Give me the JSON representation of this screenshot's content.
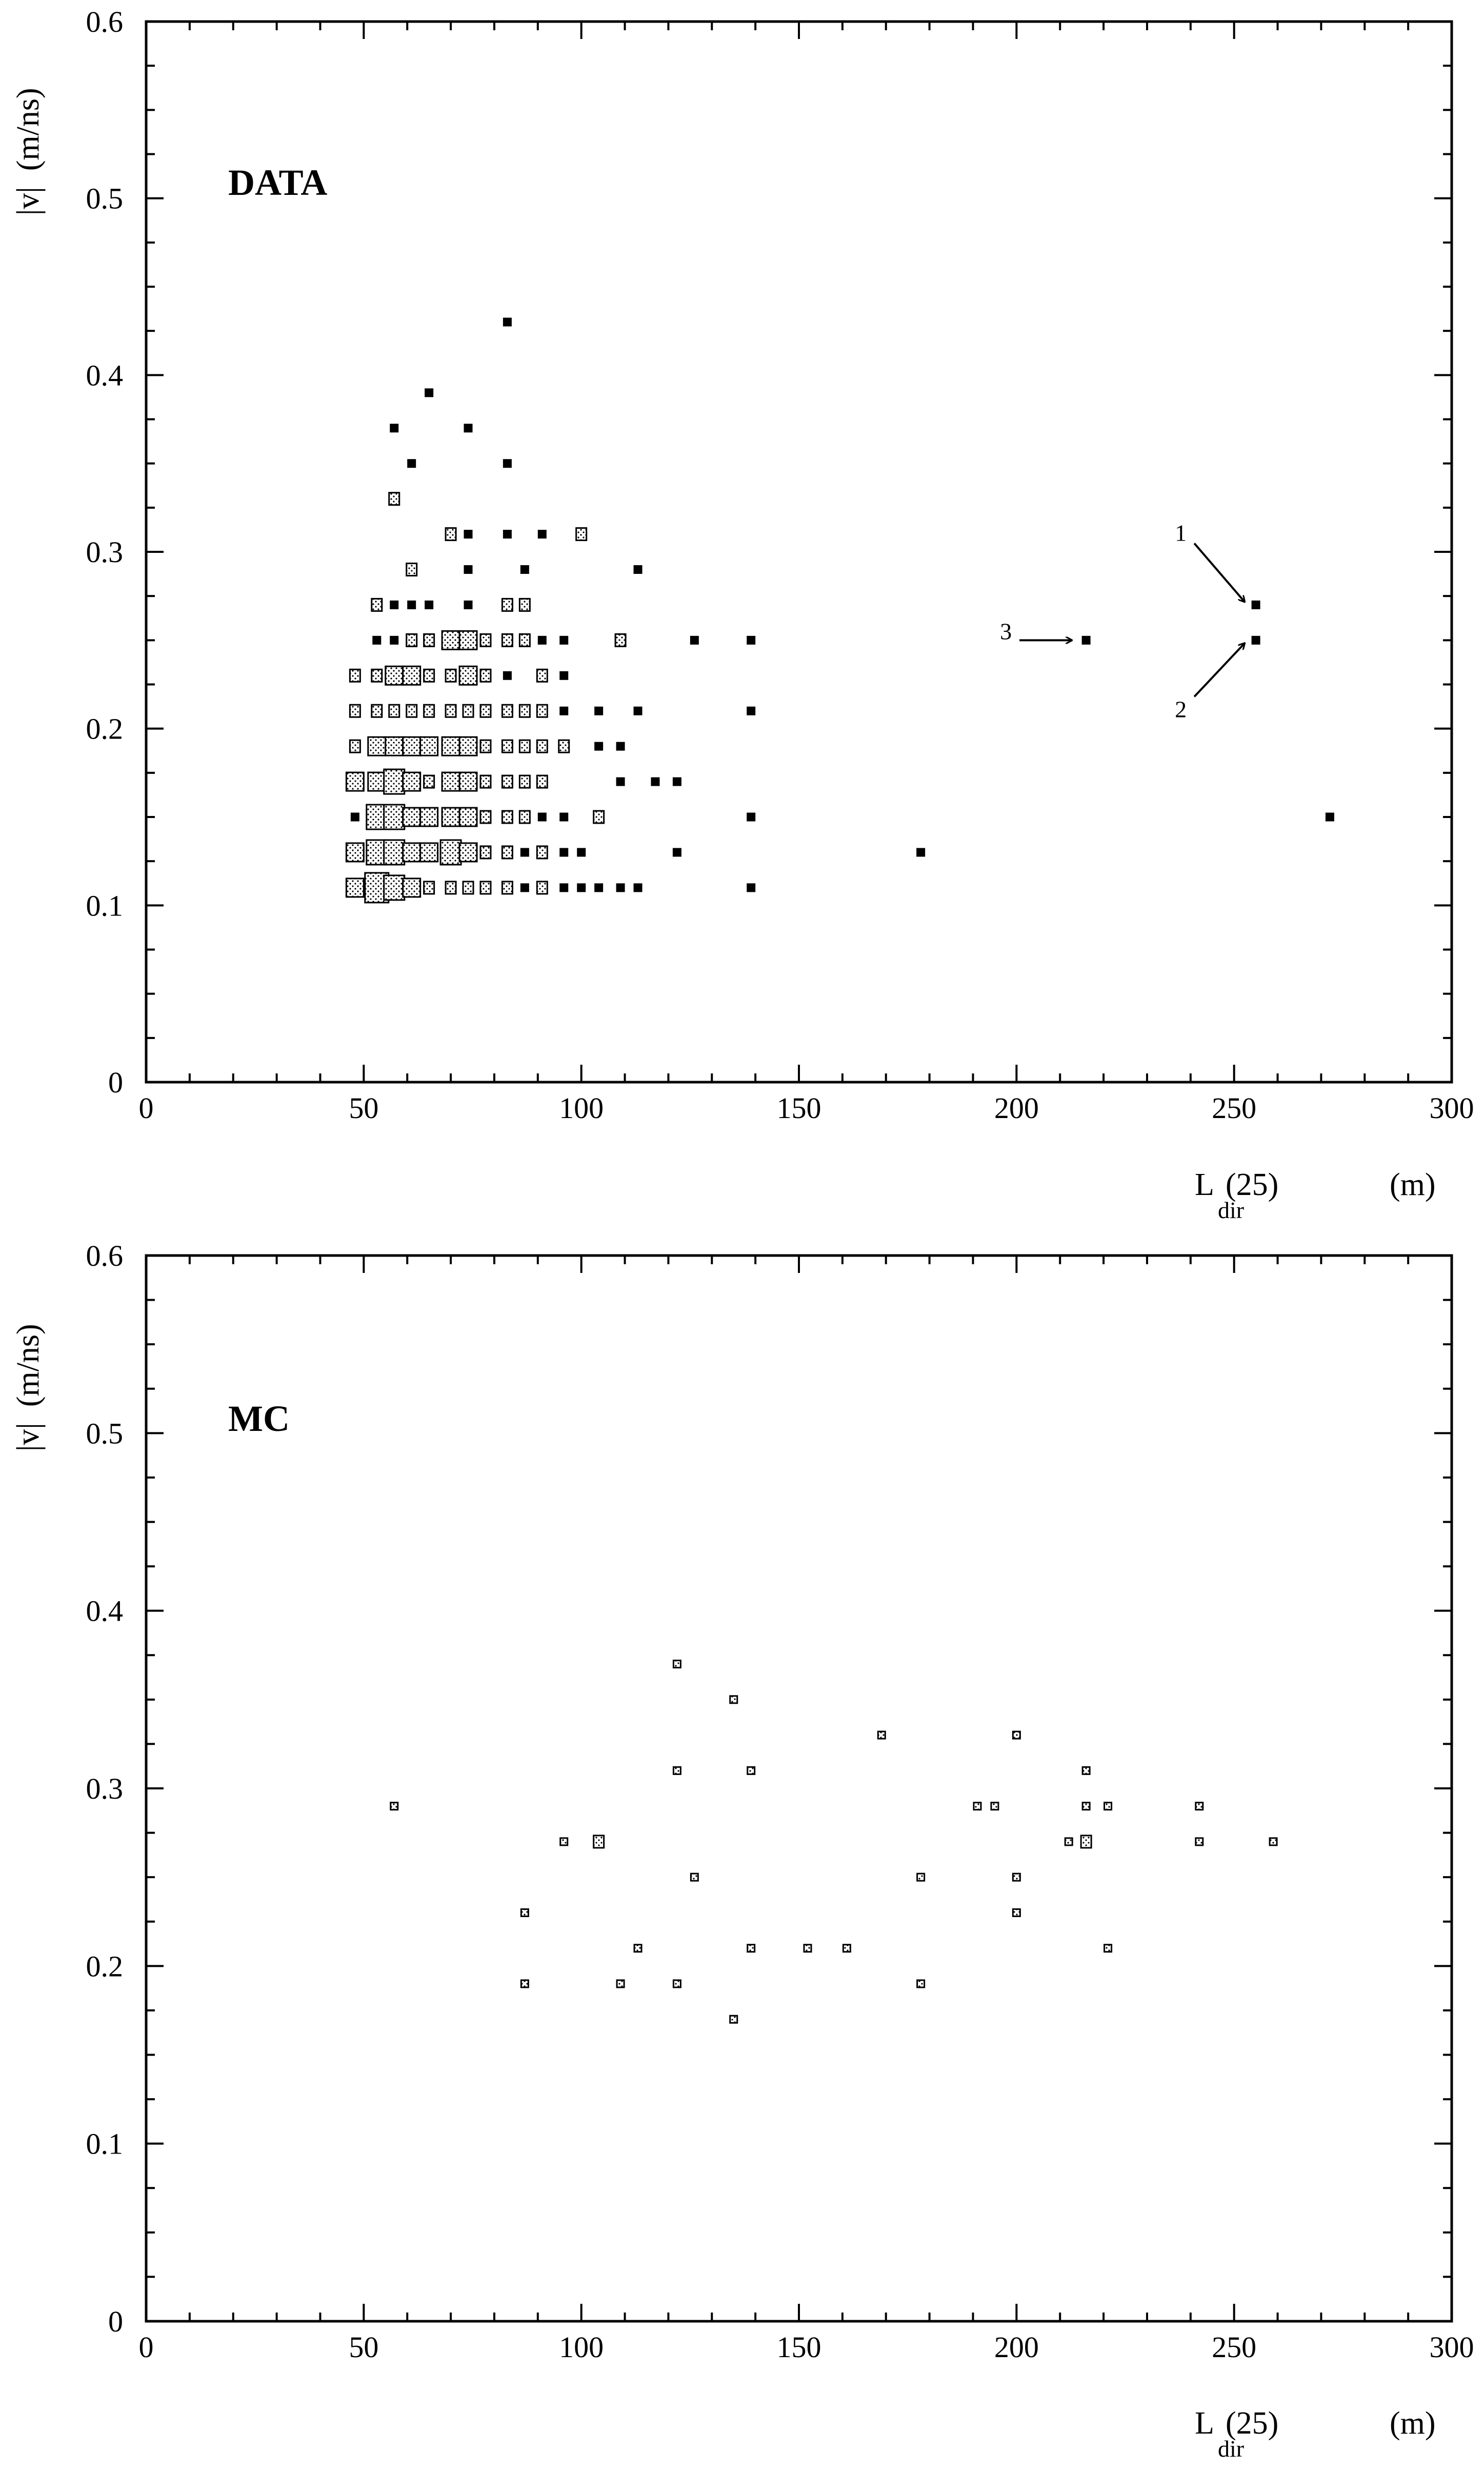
{
  "chart_data": [
    {
      "type": "scatter",
      "panel_label": "DATA",
      "x_label_main": "L",
      "x_label_sub": "dir",
      "x_label_arg": "(25)",
      "x_label_unit": "(m)",
      "y_label": "|v|  (m/ns)",
      "xlim": [
        0,
        300
      ],
      "ylim": [
        0,
        0.6
      ],
      "x_ticks": [
        0,
        50,
        100,
        150,
        200,
        250,
        300
      ],
      "y_ticks": [
        0,
        0.1,
        0.2,
        0.3,
        0.4,
        0.5,
        0.6
      ],
      "x_tick_labels": [
        "0",
        "50",
        "100",
        "150",
        "200",
        "250",
        "300"
      ],
      "y_tick_labels": [
        "0",
        "0.1",
        "0.2",
        "0.3",
        "0.4",
        "0.5",
        "0.6"
      ],
      "grid": false,
      "marker": "box (size ∝ entries)",
      "points": [
        {
          "x": 83,
          "y": 0.43,
          "w": 1
        },
        {
          "x": 65,
          "y": 0.39,
          "w": 1
        },
        {
          "x": 57,
          "y": 0.37,
          "w": 1
        },
        {
          "x": 74,
          "y": 0.37,
          "w": 1
        },
        {
          "x": 61,
          "y": 0.35,
          "w": 1
        },
        {
          "x": 83,
          "y": 0.35,
          "w": 1
        },
        {
          "x": 57,
          "y": 0.33,
          "w": 2
        },
        {
          "x": 70,
          "y": 0.31,
          "w": 2
        },
        {
          "x": 74,
          "y": 0.31,
          "w": 1
        },
        {
          "x": 83,
          "y": 0.31,
          "w": 1
        },
        {
          "x": 91,
          "y": 0.31,
          "w": 1
        },
        {
          "x": 100,
          "y": 0.31,
          "w": 2
        },
        {
          "x": 61,
          "y": 0.29,
          "w": 2
        },
        {
          "x": 74,
          "y": 0.29,
          "w": 1
        },
        {
          "x": 87,
          "y": 0.29,
          "w": 1
        },
        {
          "x": 113,
          "y": 0.29,
          "w": 1
        },
        {
          "x": 53,
          "y": 0.27,
          "w": 2
        },
        {
          "x": 57,
          "y": 0.27,
          "w": 1
        },
        {
          "x": 61,
          "y": 0.27,
          "w": 1
        },
        {
          "x": 65,
          "y": 0.27,
          "w": 1
        },
        {
          "x": 74,
          "y": 0.27,
          "w": 1
        },
        {
          "x": 83,
          "y": 0.27,
          "w": 2
        },
        {
          "x": 87,
          "y": 0.27,
          "w": 2
        },
        {
          "x": 53,
          "y": 0.25,
          "w": 1
        },
        {
          "x": 57,
          "y": 0.25,
          "w": 1
        },
        {
          "x": 61,
          "y": 0.25,
          "w": 2
        },
        {
          "x": 65,
          "y": 0.25,
          "w": 2
        },
        {
          "x": 70,
          "y": 0.25,
          "w": 3
        },
        {
          "x": 74,
          "y": 0.25,
          "w": 3
        },
        {
          "x": 78,
          "y": 0.25,
          "w": 2
        },
        {
          "x": 83,
          "y": 0.25,
          "w": 2
        },
        {
          "x": 87,
          "y": 0.25,
          "w": 2
        },
        {
          "x": 91,
          "y": 0.25,
          "w": 1
        },
        {
          "x": 96,
          "y": 0.25,
          "w": 1
        },
        {
          "x": 109,
          "y": 0.25,
          "w": 2
        },
        {
          "x": 126,
          "y": 0.25,
          "w": 1
        },
        {
          "x": 139,
          "y": 0.25,
          "w": 1
        },
        {
          "x": 48,
          "y": 0.23,
          "w": 2
        },
        {
          "x": 53,
          "y": 0.23,
          "w": 2
        },
        {
          "x": 57,
          "y": 0.23,
          "w": 3
        },
        {
          "x": 61,
          "y": 0.23,
          "w": 3
        },
        {
          "x": 65,
          "y": 0.23,
          "w": 2
        },
        {
          "x": 70,
          "y": 0.23,
          "w": 2
        },
        {
          "x": 74,
          "y": 0.23,
          "w": 3
        },
        {
          "x": 78,
          "y": 0.23,
          "w": 2
        },
        {
          "x": 83,
          "y": 0.23,
          "w": 1
        },
        {
          "x": 91,
          "y": 0.23,
          "w": 2
        },
        {
          "x": 96,
          "y": 0.23,
          "w": 1
        },
        {
          "x": 48,
          "y": 0.21,
          "w": 2
        },
        {
          "x": 53,
          "y": 0.21,
          "w": 2
        },
        {
          "x": 57,
          "y": 0.21,
          "w": 2
        },
        {
          "x": 61,
          "y": 0.21,
          "w": 2
        },
        {
          "x": 65,
          "y": 0.21,
          "w": 2
        },
        {
          "x": 70,
          "y": 0.21,
          "w": 2
        },
        {
          "x": 74,
          "y": 0.21,
          "w": 2
        },
        {
          "x": 78,
          "y": 0.21,
          "w": 2
        },
        {
          "x": 83,
          "y": 0.21,
          "w": 2
        },
        {
          "x": 87,
          "y": 0.21,
          "w": 2
        },
        {
          "x": 91,
          "y": 0.21,
          "w": 2
        },
        {
          "x": 96,
          "y": 0.21,
          "w": 1
        },
        {
          "x": 104,
          "y": 0.21,
          "w": 1
        },
        {
          "x": 113,
          "y": 0.21,
          "w": 1
        },
        {
          "x": 139,
          "y": 0.21,
          "w": 1
        },
        {
          "x": 48,
          "y": 0.19,
          "w": 2
        },
        {
          "x": 53,
          "y": 0.19,
          "w": 3
        },
        {
          "x": 57,
          "y": 0.19,
          "w": 3
        },
        {
          "x": 61,
          "y": 0.19,
          "w": 3
        },
        {
          "x": 65,
          "y": 0.19,
          "w": 3
        },
        {
          "x": 70,
          "y": 0.19,
          "w": 3
        },
        {
          "x": 74,
          "y": 0.19,
          "w": 3
        },
        {
          "x": 78,
          "y": 0.19,
          "w": 2
        },
        {
          "x": 83,
          "y": 0.19,
          "w": 2
        },
        {
          "x": 87,
          "y": 0.19,
          "w": 2
        },
        {
          "x": 91,
          "y": 0.19,
          "w": 2
        },
        {
          "x": 96,
          "y": 0.19,
          "w": 2
        },
        {
          "x": 104,
          "y": 0.19,
          "w": 1
        },
        {
          "x": 109,
          "y": 0.19,
          "w": 1
        },
        {
          "x": 48,
          "y": 0.17,
          "w": 3
        },
        {
          "x": 53,
          "y": 0.17,
          "w": 3
        },
        {
          "x": 57,
          "y": 0.17,
          "w": 4
        },
        {
          "x": 61,
          "y": 0.17,
          "w": 3
        },
        {
          "x": 65,
          "y": 0.17,
          "w": 2
        },
        {
          "x": 70,
          "y": 0.17,
          "w": 3
        },
        {
          "x": 74,
          "y": 0.17,
          "w": 3
        },
        {
          "x": 78,
          "y": 0.17,
          "w": 2
        },
        {
          "x": 83,
          "y": 0.17,
          "w": 2
        },
        {
          "x": 87,
          "y": 0.17,
          "w": 2
        },
        {
          "x": 91,
          "y": 0.17,
          "w": 2
        },
        {
          "x": 109,
          "y": 0.17,
          "w": 1
        },
        {
          "x": 117,
          "y": 0.17,
          "w": 1
        },
        {
          "x": 122,
          "y": 0.17,
          "w": 1
        },
        {
          "x": 48,
          "y": 0.15,
          "w": 1
        },
        {
          "x": 53,
          "y": 0.15,
          "w": 4
        },
        {
          "x": 57,
          "y": 0.15,
          "w": 4
        },
        {
          "x": 61,
          "y": 0.15,
          "w": 3
        },
        {
          "x": 65,
          "y": 0.15,
          "w": 3
        },
        {
          "x": 70,
          "y": 0.15,
          "w": 3
        },
        {
          "x": 74,
          "y": 0.15,
          "w": 3
        },
        {
          "x": 78,
          "y": 0.15,
          "w": 2
        },
        {
          "x": 83,
          "y": 0.15,
          "w": 2
        },
        {
          "x": 87,
          "y": 0.15,
          "w": 2
        },
        {
          "x": 91,
          "y": 0.15,
          "w": 1
        },
        {
          "x": 96,
          "y": 0.15,
          "w": 1
        },
        {
          "x": 104,
          "y": 0.15,
          "w": 2
        },
        {
          "x": 139,
          "y": 0.15,
          "w": 1
        },
        {
          "x": 272,
          "y": 0.15,
          "w": 1
        },
        {
          "x": 48,
          "y": 0.13,
          "w": 3
        },
        {
          "x": 53,
          "y": 0.13,
          "w": 4
        },
        {
          "x": 57,
          "y": 0.13,
          "w": 4
        },
        {
          "x": 61,
          "y": 0.13,
          "w": 3
        },
        {
          "x": 65,
          "y": 0.13,
          "w": 3
        },
        {
          "x": 70,
          "y": 0.13,
          "w": 4
        },
        {
          "x": 74,
          "y": 0.13,
          "w": 3
        },
        {
          "x": 78,
          "y": 0.13,
          "w": 2
        },
        {
          "x": 83,
          "y": 0.13,
          "w": 2
        },
        {
          "x": 87,
          "y": 0.13,
          "w": 1
        },
        {
          "x": 91,
          "y": 0.13,
          "w": 2
        },
        {
          "x": 96,
          "y": 0.13,
          "w": 1
        },
        {
          "x": 100,
          "y": 0.13,
          "w": 1
        },
        {
          "x": 122,
          "y": 0.13,
          "w": 1
        },
        {
          "x": 178,
          "y": 0.13,
          "w": 1
        },
        {
          "x": 48,
          "y": 0.11,
          "w": 3
        },
        {
          "x": 53,
          "y": 0.11,
          "w": 5
        },
        {
          "x": 57,
          "y": 0.11,
          "w": 4
        },
        {
          "x": 61,
          "y": 0.11,
          "w": 3
        },
        {
          "x": 65,
          "y": 0.11,
          "w": 2
        },
        {
          "x": 70,
          "y": 0.11,
          "w": 2
        },
        {
          "x": 74,
          "y": 0.11,
          "w": 2
        },
        {
          "x": 78,
          "y": 0.11,
          "w": 2
        },
        {
          "x": 83,
          "y": 0.11,
          "w": 2
        },
        {
          "x": 87,
          "y": 0.11,
          "w": 1
        },
        {
          "x": 91,
          "y": 0.11,
          "w": 2
        },
        {
          "x": 96,
          "y": 0.11,
          "w": 1
        },
        {
          "x": 100,
          "y": 0.11,
          "w": 1
        },
        {
          "x": 104,
          "y": 0.11,
          "w": 1
        },
        {
          "x": 109,
          "y": 0.11,
          "w": 1
        },
        {
          "x": 113,
          "y": 0.11,
          "w": 1
        },
        {
          "x": 139,
          "y": 0.11,
          "w": 1
        },
        {
          "x": 216,
          "y": 0.25,
          "w": 1
        },
        {
          "x": 255,
          "y": 0.27,
          "w": 1
        },
        {
          "x": 255,
          "y": 0.25,
          "w": 1
        }
      ],
      "annotations": [
        {
          "text": "1",
          "x": 255,
          "y": 0.27,
          "from": "top-left"
        },
        {
          "text": "2",
          "x": 255,
          "y": 0.25,
          "from": "bottom-left"
        },
        {
          "text": "3",
          "x": 216,
          "y": 0.25,
          "from": "left"
        }
      ]
    },
    {
      "type": "scatter",
      "panel_label": "MC",
      "x_label_main": "L",
      "x_label_sub": "dir",
      "x_label_arg": "(25)",
      "x_label_unit": "(m)",
      "y_label": "|v|  (m/ns)",
      "xlim": [
        0,
        300
      ],
      "ylim": [
        0,
        0.6
      ],
      "x_ticks": [
        0,
        50,
        100,
        150,
        200,
        250,
        300
      ],
      "y_ticks": [
        0,
        0.1,
        0.2,
        0.3,
        0.4,
        0.5,
        0.6
      ],
      "x_tick_labels": [
        "0",
        "50",
        "100",
        "150",
        "200",
        "250",
        "300"
      ],
      "y_tick_labels": [
        "0",
        "0.1",
        "0.2",
        "0.3",
        "0.4",
        "0.5",
        "0.6"
      ],
      "grid": false,
      "marker": "box (size ∝ entries)",
      "points": [
        {
          "x": 57,
          "y": 0.29,
          "w": 1
        },
        {
          "x": 87,
          "y": 0.23,
          "w": 1
        },
        {
          "x": 87,
          "y": 0.19,
          "w": 1
        },
        {
          "x": 96,
          "y": 0.27,
          "w": 1
        },
        {
          "x": 104,
          "y": 0.27,
          "w": 2
        },
        {
          "x": 109,
          "y": 0.19,
          "w": 1
        },
        {
          "x": 113,
          "y": 0.21,
          "w": 1
        },
        {
          "x": 122,
          "y": 0.37,
          "w": 1
        },
        {
          "x": 122,
          "y": 0.31,
          "w": 1
        },
        {
          "x": 122,
          "y": 0.19,
          "w": 1
        },
        {
          "x": 126,
          "y": 0.25,
          "w": 1
        },
        {
          "x": 135,
          "y": 0.35,
          "w": 1
        },
        {
          "x": 135,
          "y": 0.17,
          "w": 1
        },
        {
          "x": 139,
          "y": 0.31,
          "w": 1
        },
        {
          "x": 139,
          "y": 0.21,
          "w": 1
        },
        {
          "x": 152,
          "y": 0.21,
          "w": 1
        },
        {
          "x": 161,
          "y": 0.21,
          "w": 1
        },
        {
          "x": 169,
          "y": 0.33,
          "w": 1
        },
        {
          "x": 178,
          "y": 0.25,
          "w": 1
        },
        {
          "x": 178,
          "y": 0.19,
          "w": 1
        },
        {
          "x": 191,
          "y": 0.29,
          "w": 1
        },
        {
          "x": 195,
          "y": 0.29,
          "w": 1
        },
        {
          "x": 200,
          "y": 0.33,
          "w": 1
        },
        {
          "x": 200,
          "y": 0.25,
          "w": 1
        },
        {
          "x": 200,
          "y": 0.23,
          "w": 1
        },
        {
          "x": 212,
          "y": 0.27,
          "w": 1
        },
        {
          "x": 216,
          "y": 0.31,
          "w": 1
        },
        {
          "x": 216,
          "y": 0.29,
          "w": 1
        },
        {
          "x": 216,
          "y": 0.27,
          "w": 2
        },
        {
          "x": 221,
          "y": 0.29,
          "w": 1
        },
        {
          "x": 221,
          "y": 0.21,
          "w": 1
        },
        {
          "x": 242,
          "y": 0.29,
          "w": 1
        },
        {
          "x": 242,
          "y": 0.27,
          "w": 1
        },
        {
          "x": 259,
          "y": 0.27,
          "w": 1
        }
      ],
      "annotations": []
    }
  ]
}
